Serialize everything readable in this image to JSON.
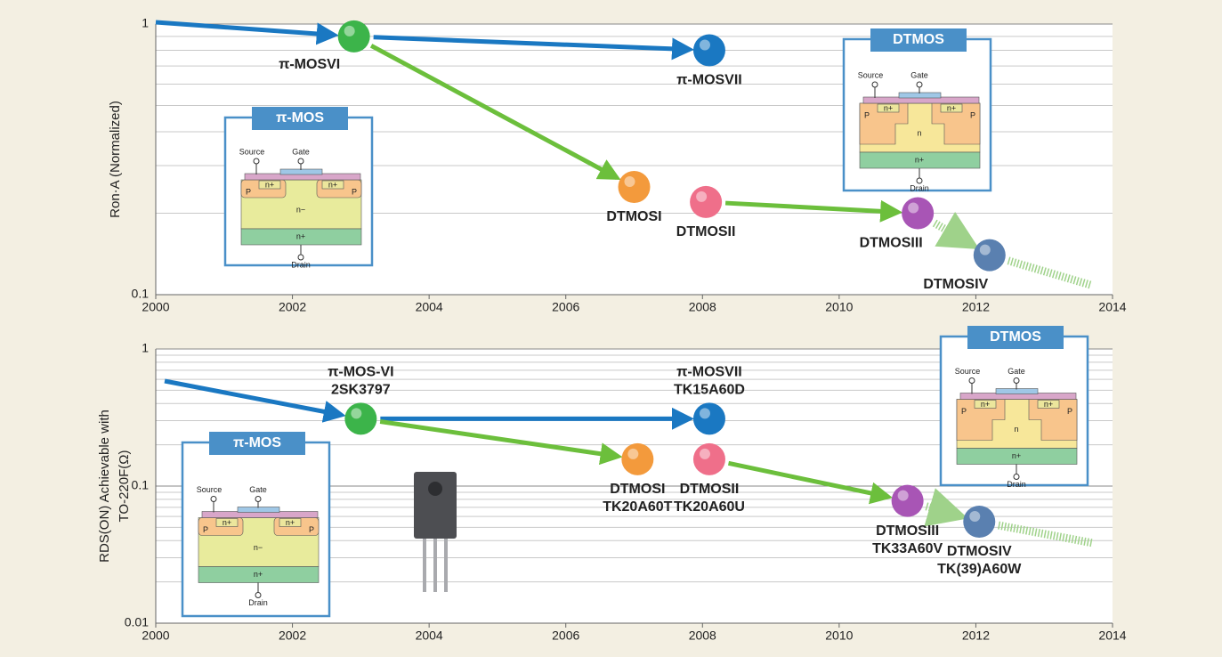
{
  "chart_data": [
    {
      "type": "scatter",
      "y_label": "Ron·A (Normalized)",
      "x": [
        2002.9,
        2008.1,
        2007.0,
        2008.05,
        2011.15,
        2012.2
      ],
      "values": [
        0.9,
        0.8,
        0.25,
        0.22,
        0.2,
        0.14
      ],
      "labels": [
        "π-MOSVI",
        "π-MOSVII",
        "DTMOSI",
        "DTMOSII",
        "DTMOSIII",
        "DTMOSIV"
      ],
      "colors": [
        "#3cb44a",
        "#1a78c2",
        "#f39a3c",
        "#ef6f8a",
        "#a855b5",
        "#5a80b0"
      ],
      "xlim": [
        2000,
        2014
      ],
      "xticks": [
        2000,
        2002,
        2004,
        2006,
        2008,
        2010,
        2012,
        2014
      ],
      "ylim": [
        0.1,
        1
      ],
      "yticks": [
        0.1,
        1
      ],
      "log_y": true,
      "grid": true,
      "insets": [
        {
          "title": "π-MOS",
          "labels": [
            "Source",
            "Gate",
            "P",
            "n+",
            "n+",
            "P",
            "n−",
            "n+",
            "Drain"
          ]
        },
        {
          "title": "DTMOS",
          "labels": [
            "Source",
            "Gate",
            "P",
            "n+",
            "n+",
            "P",
            "n",
            "n+",
            "Drain"
          ]
        }
      ]
    },
    {
      "type": "scatter",
      "y_label": [
        "RDS(ON) Achievable with",
        "TO-220F(Ω)"
      ],
      "x": [
        2003.0,
        2008.1,
        2007.05,
        2008.1,
        2011.0,
        2012.05
      ],
      "values": [
        0.31,
        0.31,
        0.157,
        0.157,
        0.078,
        0.055
      ],
      "labels": [
        "π-MOS-VI",
        "π-MOSVII",
        "DTMOSI",
        "DTMOSII",
        "DTMOSIII",
        "DTMOSIV"
      ],
      "part_numbers": [
        "2SK3797",
        "TK15A60D",
        "TK20A60T",
        "TK20A60U",
        "TK33A60V",
        "TK(39)A60W"
      ],
      "colors": [
        "#3cb44a",
        "#1a78c2",
        "#f39a3c",
        "#ef6f8a",
        "#a855b5",
        "#5a80b0"
      ],
      "xlim": [
        2000,
        2014
      ],
      "xticks": [
        2000,
        2002,
        2004,
        2006,
        2008,
        2010,
        2012,
        2014
      ],
      "ylim": [
        0.01,
        1
      ],
      "yticks": [
        0.01,
        0.1,
        1
      ],
      "log_y": true,
      "grid": true,
      "insets": [
        {
          "title": "π-MOS",
          "labels": [
            "Source",
            "Gate",
            "P",
            "n+",
            "n+",
            "P",
            "n−",
            "n+",
            "Drain"
          ]
        },
        {
          "title": "DTMOS",
          "labels": [
            "Source",
            "Gate",
            "P",
            "n+",
            "n+",
            "P",
            "n",
            "n+",
            "Drain"
          ]
        }
      ]
    }
  ]
}
